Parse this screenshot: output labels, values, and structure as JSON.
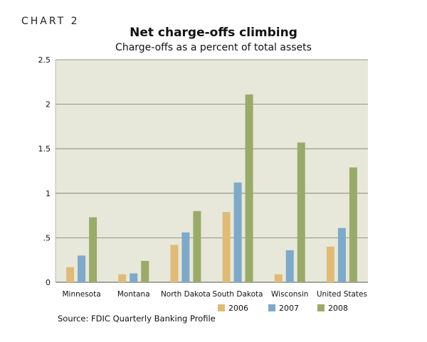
{
  "header": {
    "label": "CHART 2",
    "title": "Net charge-offs climbing",
    "subtitle": "Charge-offs as a percent of total assets"
  },
  "source": "Source: FDIC Quarterly Banking Profile",
  "chart_data": {
    "type": "bar",
    "title": "Net charge-offs climbing",
    "subtitle": "Charge-offs as a percent of total assets",
    "categories": [
      "Minnesota",
      "Montana",
      "North Dakota",
      "South Dakota",
      "Wisconsin",
      "United States"
    ],
    "series": [
      {
        "name": "2006",
        "color": "#e0bb78",
        "values": [
          0.17,
          0.09,
          0.42,
          0.79,
          0.09,
          0.4
        ]
      },
      {
        "name": "2007",
        "color": "#7ea9c9",
        "values": [
          0.3,
          0.1,
          0.56,
          1.12,
          0.36,
          0.61
        ]
      },
      {
        "name": "2008",
        "color": "#9aaa6a",
        "values": [
          0.73,
          0.24,
          0.8,
          2.11,
          1.57,
          1.29
        ]
      }
    ],
    "yticks": [
      "0",
      ".5",
      "1",
      "1.5",
      "2",
      "2.5"
    ],
    "ytick_values": [
      0,
      0.5,
      1,
      1.5,
      2,
      2.5
    ],
    "ylim": [
      0,
      2.5
    ],
    "plot_background": "#e7e8d9",
    "grid": true,
    "legend_position": "bottom-right"
  }
}
